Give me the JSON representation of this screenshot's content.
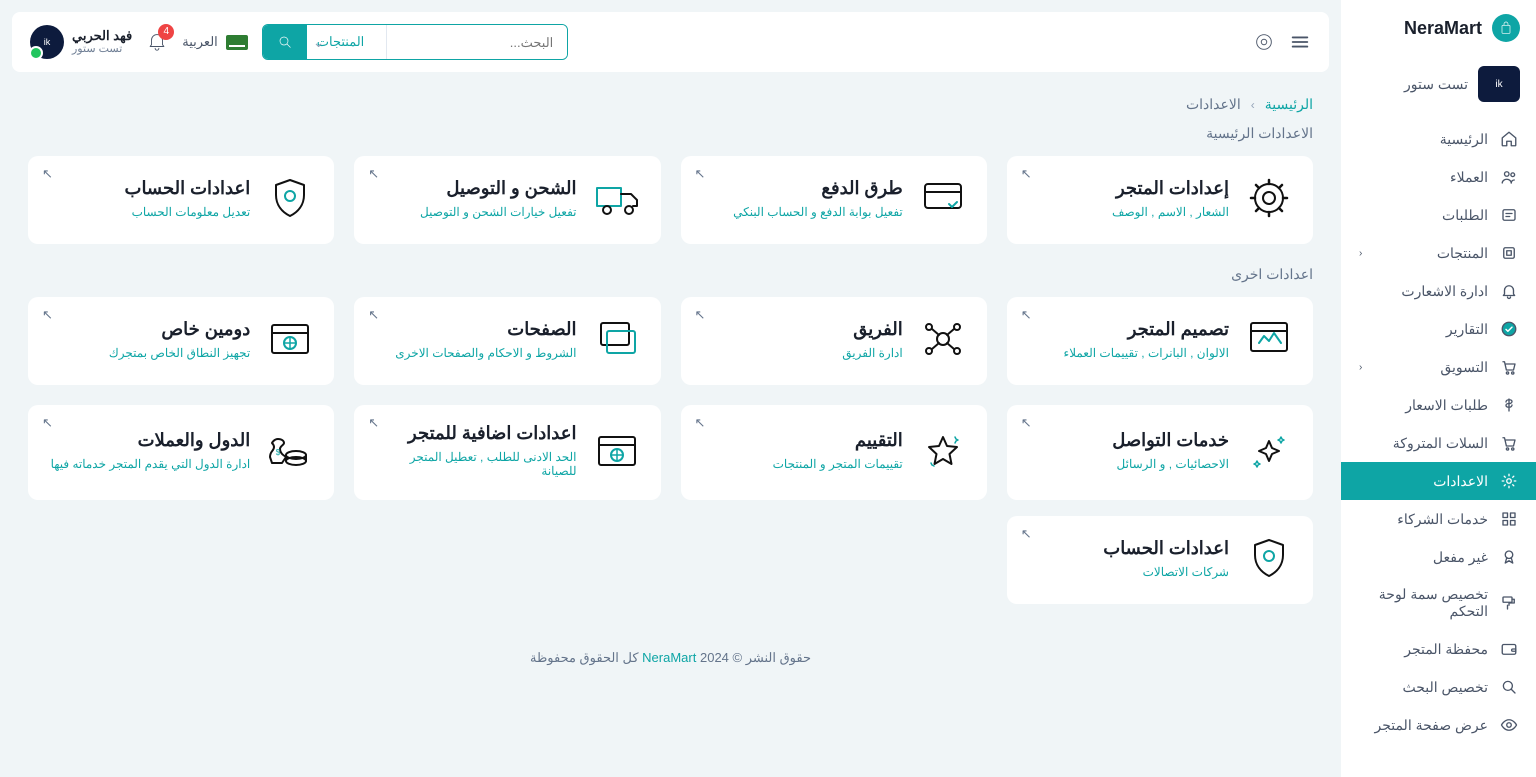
{
  "brand": "NeraMart",
  "store_name": "تست ستور",
  "sidebar": {
    "items": [
      {
        "label": "الرئيسية",
        "icon": "home"
      },
      {
        "label": "العملاء",
        "icon": "users"
      },
      {
        "label": "الطلبات",
        "icon": "orders"
      },
      {
        "label": "المنتجات",
        "icon": "products",
        "chevron": true
      },
      {
        "label": "ادارة الاشعارت",
        "icon": "bell"
      },
      {
        "label": "التقارير",
        "icon": "check"
      },
      {
        "label": "التسويق",
        "icon": "cart",
        "chevron": true
      },
      {
        "label": "طلبات الاسعار",
        "icon": "dollar"
      },
      {
        "label": "السلات المتروكة",
        "icon": "cart"
      },
      {
        "label": "الاعدادات",
        "icon": "gear",
        "active": true
      },
      {
        "label": "خدمات الشركاء",
        "icon": "grid"
      },
      {
        "label": "غير مفعل",
        "icon": "medal"
      },
      {
        "label": "تخصيص سمة لوحة التحكم",
        "icon": "paint"
      },
      {
        "label": "محفظة المتجر",
        "icon": "wallet"
      },
      {
        "label": "تخصيص البحث",
        "icon": "search"
      },
      {
        "label": "عرض صفحة المتجر",
        "icon": "eye"
      }
    ]
  },
  "topbar": {
    "search_placeholder": "البحث...",
    "search_cat": "المنتجات",
    "lang": "العربية",
    "notif_count": "4",
    "user_name": "فهد الحربي",
    "user_sub": "تست ستور"
  },
  "breadcrumb": {
    "home": "الرئيسية",
    "current": "الاعدادات"
  },
  "section_main": "الاعدادات الرئيسية",
  "section_other": "اعدادات اخرى",
  "cards_main": [
    {
      "title": "إعدادات المتجر",
      "sub": "الشعار , الاسم , الوصف",
      "icon": "gear"
    },
    {
      "title": "طرق الدفع",
      "sub": "تفعيل بوابة الدفع و الحساب البنكي",
      "icon": "card"
    },
    {
      "title": "الشحن و التوصيل",
      "sub": "تفعيل خيارات الشحن و التوصيل",
      "icon": "truck"
    },
    {
      "title": "اعدادات الحساب",
      "sub": "تعديل معلومات الحساب",
      "icon": "shield-user"
    }
  ],
  "cards_other": [
    {
      "title": "تصميم المتجر",
      "sub": "الالوان , البانرات , تقييمات العملاء",
      "icon": "layout"
    },
    {
      "title": "الفريق",
      "sub": "ادارة الفريق",
      "icon": "team"
    },
    {
      "title": "الصفحات",
      "sub": "الشروط و الاحكام والصفحات الاخرى",
      "icon": "pages"
    },
    {
      "title": "دومين خاص",
      "sub": "تجهيز النطاق الخاص بمتجرك",
      "icon": "domain"
    },
    {
      "title": "خدمات التواصل",
      "sub": "الاحصائيات , و الرسائل",
      "icon": "sparkle"
    },
    {
      "title": "التقييم",
      "sub": "تقييمات المتجر و المنتجات",
      "icon": "star"
    },
    {
      "title": "اعدادات اضافية للمتجر",
      "sub": "الحد الادنى للطلب , تعطيل المتجر للصيانة",
      "icon": "domain"
    },
    {
      "title": "الدول والعملات",
      "sub": "ادارة الدول التي يقدم المتجر خدماته فيها",
      "icon": "money"
    }
  ],
  "cards_last": [
    {
      "title": "اعدادات الحساب",
      "sub": "شركات الاتصالات",
      "icon": "shield-user"
    }
  ],
  "footer": {
    "pre": "حقوق النشر © 2024 ",
    "brand": "NeraMart",
    "post": " كل الحقوق محفوظة"
  },
  "colors": {
    "accent": "#0ea5a5",
    "muted": "#64748b"
  }
}
